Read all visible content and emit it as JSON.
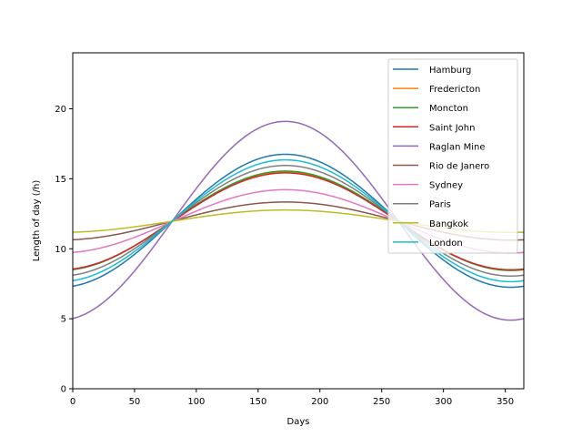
{
  "chart_data": {
    "type": "line",
    "title": "",
    "xlabel": "Days",
    "ylabel": "Length of day (/h)",
    "xlim": [
      0,
      365
    ],
    "ylim": [
      0,
      24
    ],
    "xticks": [
      0,
      50,
      100,
      150,
      200,
      250,
      300,
      350
    ],
    "yticks": [
      0,
      5,
      10,
      15,
      20
    ],
    "grid": false,
    "legend_position": "top-right",
    "curve_model": "day_length = base + amplitude * cos(2*pi*(day - 172)/365)",
    "series": [
      {
        "name": "Hamburg",
        "color": "#1f77b4",
        "base": 12.0,
        "amplitude": 4.75
      },
      {
        "name": "Fredericton",
        "color": "#ff7f0e",
        "base": 11.98,
        "amplitude": 3.5
      },
      {
        "name": "Moncton",
        "color": "#2ca02c",
        "base": 12.0,
        "amplitude": 3.55
      },
      {
        "name": "Saint John",
        "color": "#d62728",
        "base": 11.96,
        "amplitude": 3.46
      },
      {
        "name": "Raglan Mine",
        "color": "#9467bd",
        "base": 12.0,
        "amplitude": 7.1
      },
      {
        "name": "Rio de Janero",
        "color": "#8c564b",
        "base": 11.98,
        "amplitude": 1.36
      },
      {
        "name": "Sydney",
        "color": "#e377c2",
        "base": 11.96,
        "amplitude": 2.26
      },
      {
        "name": "Paris",
        "color": "#7f7f7f",
        "base": 12.0,
        "amplitude": 3.95
      },
      {
        "name": "Bangkok",
        "color": "#bcbd22",
        "base": 11.97,
        "amplitude": 0.8
      },
      {
        "name": "London",
        "color": "#17becf",
        "base": 12.0,
        "amplitude": 4.35
      }
    ]
  }
}
